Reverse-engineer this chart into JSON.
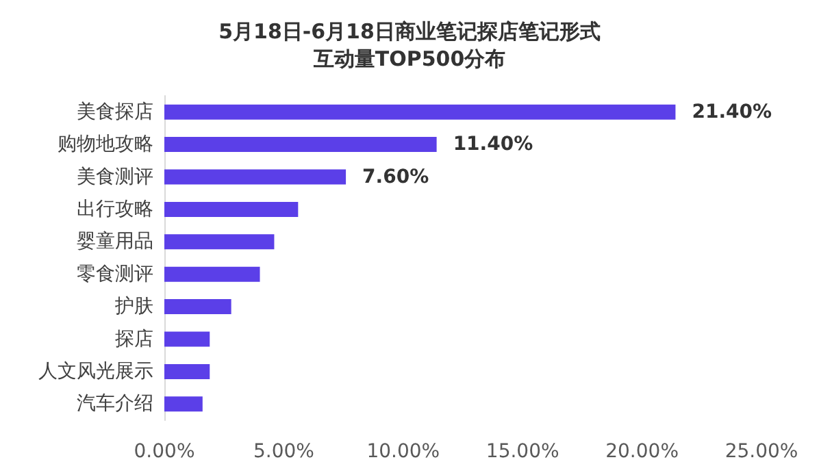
{
  "chart_data": {
    "type": "bar",
    "orientation": "horizontal",
    "title": "5月18日-6月18日商业笔记探店笔记形式互动量TOP500分布",
    "categories": [
      "美食探店",
      "购物地攻略",
      "美食测评",
      "出行攻略",
      "婴童用品",
      "零食测评",
      "护肤",
      "探店",
      "人文风光展示",
      "汽车介绍"
    ],
    "values": [
      21.4,
      11.4,
      7.6,
      5.6,
      4.6,
      4.0,
      2.8,
      1.9,
      1.9,
      1.6
    ],
    "value_labels": [
      "21.40%",
      "11.40%",
      "7.60%",
      null,
      null,
      null,
      null,
      null,
      null,
      null
    ],
    "color": "#5b3fe8",
    "xlim": [
      0,
      25
    ],
    "xticks": [
      {
        "value": 0,
        "label": "0.00%"
      },
      {
        "value": 5,
        "label": "5.00%"
      },
      {
        "value": 10,
        "label": "10.00%"
      },
      {
        "value": 15,
        "label": "15.00%"
      },
      {
        "value": 20,
        "label": "20.00%"
      },
      {
        "value": 25,
        "label": "25.00%"
      }
    ],
    "grid": false
  }
}
